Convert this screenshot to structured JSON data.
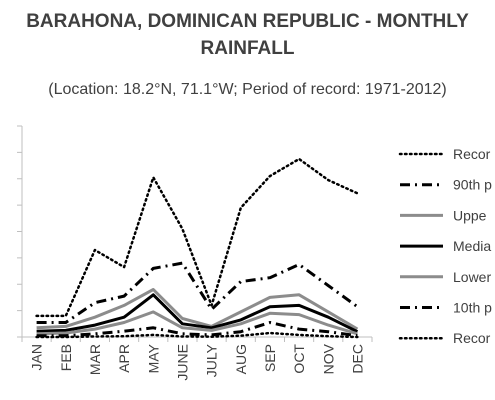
{
  "chart_data": {
    "type": "line",
    "title_lines": [
      "BARAHONA, DOMINICAN REPUBLIC - MONTHLY",
      "RAINFALL"
    ],
    "subtitle": "(Location: 18.2°N, 71.1°W; Period of record: 1971-2012)",
    "categories": [
      "JAN",
      "FEB",
      "MAR",
      "APR",
      "MAY",
      "JUNE",
      "JULY",
      "AUG",
      "SEP",
      "OCT",
      "NOV",
      "DEC"
    ],
    "ylim": [
      0,
      800
    ],
    "y_gridlines": [
      0,
      100,
      200,
      300,
      400,
      500,
      600,
      700,
      800
    ],
    "grid": false,
    "legend_position": "right",
    "series": [
      {
        "name": "Recor",
        "style": "dotted",
        "color": "#000000",
        "values": [
          80,
          80,
          330,
          265,
          605,
          410,
          120,
          490,
          610,
          675,
          595,
          545
        ]
      },
      {
        "name": "90th p",
        "style": "dash-dot",
        "color": "#000000",
        "values": [
          55,
          55,
          130,
          155,
          260,
          280,
          105,
          210,
          225,
          275,
          195,
          115
        ]
      },
      {
        "name": "Uppe",
        "style": "solid-light",
        "color": "#8c8c8c",
        "values": [
          35,
          40,
          75,
          120,
          180,
          70,
          40,
          95,
          150,
          160,
          95,
          30
        ]
      },
      {
        "name": "Media",
        "style": "solid-heavy",
        "color": "#000000",
        "values": [
          22,
          25,
          45,
          75,
          160,
          50,
          35,
          65,
          115,
          120,
          75,
          20
        ]
      },
      {
        "name": "Lower",
        "style": "solid-light",
        "color": "#8c8c8c",
        "values": [
          12,
          15,
          30,
          55,
          95,
          35,
          25,
          50,
          90,
          85,
          45,
          12
        ]
      },
      {
        "name": "10th p",
        "style": "dash-dot",
        "color": "#000000",
        "values": [
          5,
          5,
          12,
          22,
          35,
          12,
          8,
          20,
          55,
          30,
          20,
          5
        ]
      },
      {
        "name": "Recor",
        "style": "dotted",
        "color": "#000000",
        "values": [
          0,
          0,
          2,
          3,
          8,
          2,
          1,
          5,
          15,
          8,
          3,
          0
        ]
      }
    ]
  }
}
